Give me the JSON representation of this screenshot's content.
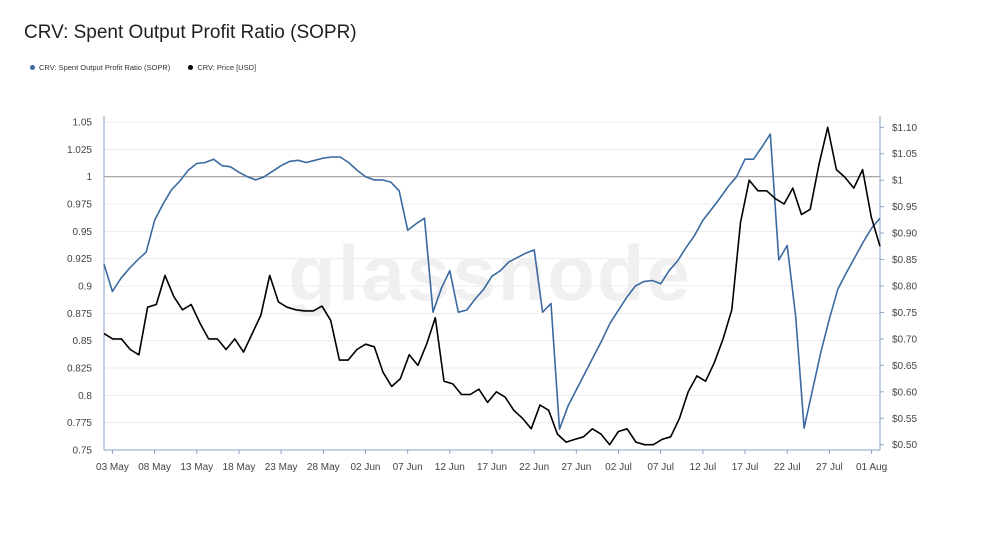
{
  "title": "CRV: Spent Output Profit Ratio (SOPR)",
  "watermark": "glassnode",
  "colors": {
    "sopr": "#3b6aa0",
    "price": "#000000",
    "grid": "#ececec",
    "reference": "#9e9e9e",
    "axis": "#8aa3c4"
  },
  "legend": [
    {
      "label": "CRV: Spent Output Profit Ratio (SOPR)",
      "color": "#3b6aa0"
    },
    {
      "label": "CRV: Price [USD]",
      "color": "#000000"
    }
  ],
  "chart_data": {
    "type": "line",
    "title": "CRV: Spent Output Profit Ratio (SOPR)",
    "x_start": "2021-05-02",
    "x_ticks": [
      "03 May",
      "08 May",
      "13 May",
      "18 May",
      "23 May",
      "28 May",
      "02 Jun",
      "07 Jun",
      "12 Jun",
      "17 Jun",
      "22 Jun",
      "27 Jun",
      "02 Jul",
      "07 Jul",
      "12 Jul",
      "17 Jul",
      "22 Jul",
      "27 Jul",
      "01 Aug"
    ],
    "y_left": {
      "label": "",
      "ylim": [
        0.75,
        1.05
      ],
      "ticks": [
        "1.05",
        "1.025",
        "1",
        "0.975",
        "0.95",
        "0.925",
        "0.9",
        "0.875",
        "0.85",
        "0.825",
        "0.8",
        "0.775",
        "0.75"
      ],
      "reference_line": 1
    },
    "y_right": {
      "label": "",
      "ylim": [
        0.49,
        1.11
      ],
      "ticks": [
        "$1.10",
        "$1.05",
        "$1",
        "$0.95",
        "$0.90",
        "$0.85",
        "$0.80",
        "$0.75",
        "$0.70",
        "$0.65",
        "$0.60",
        "$0.55",
        "$0.50"
      ]
    },
    "grid": true,
    "legend_position": "top-left",
    "series": [
      {
        "name": "CRV: Spent Output Profit Ratio (SOPR)",
        "axis": "left",
        "values": [
          0.92,
          0.895,
          0.907,
          0.916,
          0.924,
          0.931,
          0.96,
          0.975,
          0.988,
          0.996,
          1.006,
          1.012,
          1.013,
          1.016,
          1.01,
          1.009,
          1.004,
          1.0,
          0.997,
          1.0,
          1.005,
          1.01,
          1.014,
          1.015,
          1.013,
          1.015,
          1.017,
          1.018,
          1.018,
          1.013,
          1.006,
          1.0,
          0.997,
          0.997,
          0.995,
          0.987,
          0.951,
          0.957,
          0.962,
          0.876,
          0.898,
          0.914,
          0.876,
          0.878,
          0.888,
          0.897,
          0.909,
          0.914,
          0.922,
          0.926,
          0.93,
          0.933,
          0.876,
          0.884,
          0.769,
          0.79,
          0.805,
          0.82,
          0.835,
          0.85,
          0.866,
          0.878,
          0.89,
          0.9,
          0.904,
          0.905,
          0.902,
          0.914,
          0.923,
          0.935,
          0.946,
          0.96,
          0.97,
          0.98,
          0.991,
          1.0,
          1.016,
          1.016,
          1.027,
          1.039,
          0.924,
          0.937,
          0.872,
          0.77,
          0.805,
          0.84,
          0.87,
          0.897,
          0.912,
          0.926,
          0.94,
          0.953,
          0.962
        ]
      },
      {
        "name": "CRV: Price [USD]",
        "axis": "right",
        "values": [
          0.71,
          0.7,
          0.7,
          0.68,
          0.67,
          0.76,
          0.765,
          0.82,
          0.78,
          0.755,
          0.765,
          0.73,
          0.7,
          0.7,
          0.68,
          0.7,
          0.675,
          0.71,
          0.745,
          0.82,
          0.77,
          0.76,
          0.755,
          0.753,
          0.753,
          0.762,
          0.735,
          0.66,
          0.66,
          0.68,
          0.69,
          0.685,
          0.637,
          0.61,
          0.625,
          0.67,
          0.65,
          0.69,
          0.74,
          0.62,
          0.615,
          0.595,
          0.595,
          0.605,
          0.58,
          0.6,
          0.59,
          0.565,
          0.55,
          0.53,
          0.575,
          0.565,
          0.52,
          0.505,
          0.51,
          0.515,
          0.53,
          0.52,
          0.5,
          0.525,
          0.53,
          0.505,
          0.5,
          0.5,
          0.51,
          0.515,
          0.55,
          0.6,
          0.63,
          0.62,
          0.655,
          0.7,
          0.755,
          0.92,
          1.0,
          0.98,
          0.98,
          0.965,
          0.955,
          0.985,
          0.935,
          0.945,
          1.03,
          1.1,
          1.02,
          1.005,
          0.985,
          1.02,
          0.93,
          0.875
        ]
      }
    ]
  }
}
